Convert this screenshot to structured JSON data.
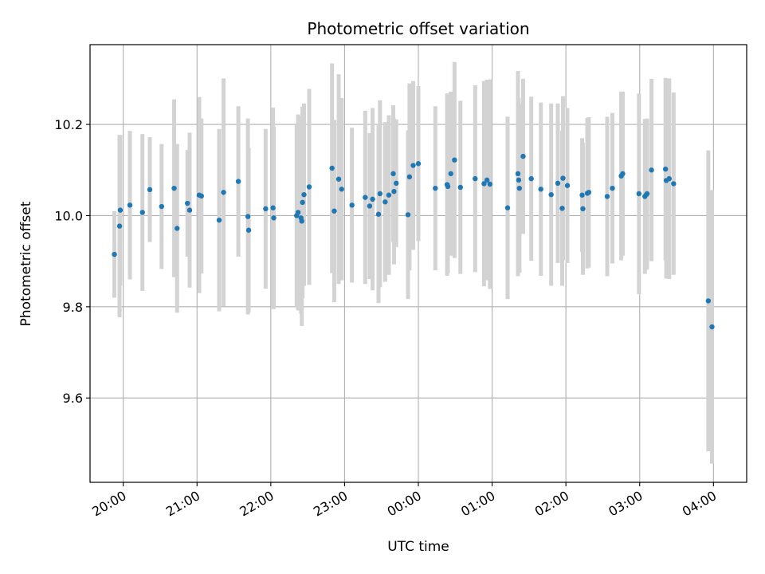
{
  "chart_data": {
    "type": "scatter",
    "title": "Photometric offset variation",
    "xlabel": "UTC time",
    "ylabel": "Photometric offset",
    "xlim": [
      -0.45,
      8.45
    ],
    "ylim": [
      9.415,
      10.375
    ],
    "x_ticks": [
      {
        "value": 0,
        "label": "20:00"
      },
      {
        "value": 1,
        "label": "21:00"
      },
      {
        "value": 2,
        "label": "22:00"
      },
      {
        "value": 3,
        "label": "23:00"
      },
      {
        "value": 4,
        "label": "00:00"
      },
      {
        "value": 5,
        "label": "01:00"
      },
      {
        "value": 6,
        "label": "02:00"
      },
      {
        "value": 7,
        "label": "03:00"
      },
      {
        "value": 8,
        "label": "04:00"
      }
    ],
    "y_ticks": [
      {
        "value": 9.6,
        "label": "9.6"
      },
      {
        "value": 9.8,
        "label": "9.8"
      },
      {
        "value": 10.0,
        "label": "10.0"
      },
      {
        "value": 10.2,
        "label": "10.2"
      }
    ],
    "grid": true,
    "colors": {
      "points": "#1f77b4",
      "errorbars": "#d3d3d3",
      "grid": "#b0b0b0"
    },
    "series": [
      {
        "x": [
          -0.12,
          -0.05,
          -0.04,
          0.09,
          0.26,
          0.36,
          0.52,
          0.69,
          0.73,
          0.87,
          0.9,
          1.03,
          1.06,
          1.3,
          1.36,
          1.56,
          1.69,
          1.7,
          1.93,
          2.03,
          2.04,
          2.35,
          2.37,
          2.41,
          2.42,
          2.43,
          2.45,
          2.52,
          2.83,
          2.86,
          2.92,
          2.96,
          3.1,
          3.28,
          3.34,
          3.38,
          3.46,
          3.48,
          3.55,
          3.6,
          3.66,
          3.67,
          3.7,
          3.86,
          3.88,
          3.93,
          4.0,
          4.23,
          4.39,
          4.4,
          4.44,
          4.49,
          4.57,
          4.77,
          4.89,
          4.93,
          4.97,
          5.21,
          5.35,
          5.36,
          5.37,
          5.42,
          5.53,
          5.66,
          5.8,
          5.89,
          5.95,
          5.96,
          6.02,
          6.22,
          6.23,
          6.29,
          6.31,
          6.56,
          6.63,
          6.75,
          6.77,
          6.99,
          7.07,
          7.09,
          7.1,
          7.16,
          7.35,
          7.36,
          7.4,
          7.46,
          7.93,
          7.98
        ],
        "y": [
          9.915,
          9.977,
          10.012,
          10.023,
          10.007,
          10.057,
          10.02,
          10.06,
          9.972,
          10.027,
          10.012,
          10.045,
          10.043,
          9.99,
          10.051,
          10.075,
          9.998,
          9.968,
          10.015,
          10.017,
          9.995,
          10.0,
          10.007,
          9.995,
          9.988,
          10.029,
          10.046,
          10.063,
          10.104,
          10.01,
          10.08,
          10.058,
          10.023,
          10.04,
          10.021,
          10.036,
          10.003,
          10.048,
          10.03,
          10.045,
          10.092,
          10.053,
          10.071,
          10.002,
          10.085,
          10.11,
          10.114,
          10.06,
          10.068,
          10.064,
          10.092,
          10.122,
          10.062,
          10.081,
          10.07,
          10.078,
          10.069,
          10.017,
          10.092,
          10.078,
          10.06,
          10.13,
          10.081,
          10.058,
          10.046,
          10.071,
          10.016,
          10.082,
          10.066,
          10.045,
          10.015,
          10.049,
          10.051,
          10.042,
          10.06,
          10.087,
          10.092,
          10.048,
          10.042,
          10.046,
          10.048,
          10.1,
          10.102,
          10.077,
          10.081,
          10.07,
          9.813,
          9.756
        ],
        "err": [
          0.095,
          0.2,
          0.165,
          0.163,
          0.172,
          0.115,
          0.137,
          0.195,
          0.185,
          0.117,
          0.17,
          0.215,
          0.17,
          0.2,
          0.25,
          0.165,
          0.215,
          0.18,
          0.175,
          0.22,
          0.2,
          0.2,
          0.215,
          0.21,
          0.23,
          0.21,
          0.2,
          0.215,
          0.23,
          0.2,
          0.23,
          0.2,
          0.17,
          0.19,
          0.16,
          0.2,
          0.195,
          0.205,
          0.175,
          0.175,
          0.15,
          0.16,
          0.14,
          0.185,
          0.205,
          0.185,
          0.17,
          0.18,
          0.2,
          0.19,
          0.18,
          0.215,
          0.19,
          0.205,
          0.225,
          0.22,
          0.23,
          0.2,
          0.225,
          0.18,
          0.185,
          0.17,
          0.18,
          0.19,
          0.2,
          0.175,
          0.17,
          0.18,
          0.17,
          0.125,
          0.145,
          0.165,
          0.165,
          0.175,
          0.165,
          0.185,
          0.18,
          0.22,
          0.17,
          0.165,
          0.165,
          0.2,
          0.2,
          0.215,
          0.22,
          0.2,
          0.33,
          0.3
        ]
      }
    ]
  }
}
